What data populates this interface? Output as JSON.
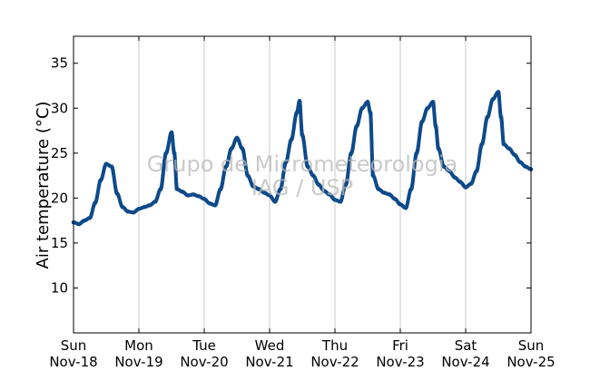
{
  "chart_data": {
    "type": "scatter",
    "title": "",
    "xlabel": "",
    "ylabel": "Air temperature (°C)",
    "ylim": [
      5,
      38
    ],
    "yticks": [
      10,
      15,
      20,
      25,
      30,
      35
    ],
    "xlim": [
      "2012-11-18",
      "2012-11-25"
    ],
    "xticks": [
      {
        "day": "Sun",
        "date": "Nov-18"
      },
      {
        "day": "Mon",
        "date": "Nov-19"
      },
      {
        "day": "Tue",
        "date": "Nov-20"
      },
      {
        "day": "Wed",
        "date": "Nov-21"
      },
      {
        "day": "Thu",
        "date": "Nov-22"
      },
      {
        "day": "Fri",
        "date": "Nov-23"
      },
      {
        "day": "Sat",
        "date": "Nov-24"
      },
      {
        "day": "Sun",
        "date": "Nov-25"
      }
    ],
    "grid": "vertical",
    "legend": "none",
    "marker_color": "#0e4a8a",
    "series": [
      {
        "values": [
          [
            "2012-11-18 00:00",
            17.3
          ],
          [
            "2012-11-18 02:00",
            17.1
          ],
          [
            "2012-11-18 04:00",
            17.5
          ],
          [
            "2012-11-18 06:00",
            17.8
          ],
          [
            "2012-11-18 08:00",
            19.5
          ],
          [
            "2012-11-18 10:00",
            22.0
          ],
          [
            "2012-11-18 12:00",
            23.8
          ],
          [
            "2012-11-18 14:00",
            23.5
          ],
          [
            "2012-11-18 16:00",
            20.5
          ],
          [
            "2012-11-18 18:00",
            19.0
          ],
          [
            "2012-11-18 20:00",
            18.5
          ],
          [
            "2012-11-18 22:00",
            18.4
          ],
          [
            "2012-11-19 00:00",
            18.8
          ],
          [
            "2012-11-19 02:00",
            19.0
          ],
          [
            "2012-11-19 04:00",
            19.2
          ],
          [
            "2012-11-19 06:00",
            19.6
          ],
          [
            "2012-11-19 08:00",
            21.0
          ],
          [
            "2012-11-19 10:00",
            25.0
          ],
          [
            "2012-11-19 12:00",
            27.3
          ],
          [
            "2012-11-19 13:00",
            25.0
          ],
          [
            "2012-11-19 14:00",
            21.0
          ],
          [
            "2012-11-19 16:00",
            20.7
          ],
          [
            "2012-11-19 18:00",
            20.3
          ],
          [
            "2012-11-19 20:00",
            20.4
          ],
          [
            "2012-11-19 22:00",
            20.2
          ],
          [
            "2012-11-20 00:00",
            19.9
          ],
          [
            "2012-11-20 02:00",
            19.4
          ],
          [
            "2012-11-20 04:00",
            19.2
          ],
          [
            "2012-11-20 06:00",
            21.0
          ],
          [
            "2012-11-20 08:00",
            23.5
          ],
          [
            "2012-11-20 10:00",
            25.5
          ],
          [
            "2012-11-20 12:00",
            26.7
          ],
          [
            "2012-11-20 14:00",
            25.5
          ],
          [
            "2012-11-20 16:00",
            22.5
          ],
          [
            "2012-11-20 18:00",
            21.3
          ],
          [
            "2012-11-20 20:00",
            21.0
          ],
          [
            "2012-11-20 22:00",
            20.6
          ],
          [
            "2012-11-21 00:00",
            20.3
          ],
          [
            "2012-11-21 02:00",
            19.6
          ],
          [
            "2012-11-21 04:00",
            21.0
          ],
          [
            "2012-11-21 06:00",
            24.0
          ],
          [
            "2012-11-21 08:00",
            26.5
          ],
          [
            "2012-11-21 10:00",
            29.5
          ],
          [
            "2012-11-21 11:00",
            30.8
          ],
          [
            "2012-11-21 12:00",
            27.0
          ],
          [
            "2012-11-21 14:00",
            23.5
          ],
          [
            "2012-11-21 16:00",
            22.5
          ],
          [
            "2012-11-21 18:00",
            21.5
          ],
          [
            "2012-11-21 20:00",
            20.8
          ],
          [
            "2012-11-21 22:00",
            20.4
          ],
          [
            "2012-11-22 00:00",
            19.8
          ],
          [
            "2012-11-22 02:00",
            19.6
          ],
          [
            "2012-11-22 04:00",
            21.5
          ],
          [
            "2012-11-22 06:00",
            25.0
          ],
          [
            "2012-11-22 08:00",
            28.0
          ],
          [
            "2012-11-22 10:00",
            30.0
          ],
          [
            "2012-11-22 12:00",
            30.7
          ],
          [
            "2012-11-22 13:00",
            29.5
          ],
          [
            "2012-11-22 14:00",
            22.5
          ],
          [
            "2012-11-22 16:00",
            21.0
          ],
          [
            "2012-11-22 18:00",
            20.6
          ],
          [
            "2012-11-22 20:00",
            20.4
          ],
          [
            "2012-11-22 22:00",
            19.9
          ],
          [
            "2012-11-23 00:00",
            19.3
          ],
          [
            "2012-11-23 02:00",
            18.9
          ],
          [
            "2012-11-23 04:00",
            21.0
          ],
          [
            "2012-11-23 06:00",
            25.0
          ],
          [
            "2012-11-23 08:00",
            28.5
          ],
          [
            "2012-11-23 10:00",
            30.0
          ],
          [
            "2012-11-23 12:00",
            30.7
          ],
          [
            "2012-11-23 13:00",
            28.0
          ],
          [
            "2012-11-23 14:00",
            25.5
          ],
          [
            "2012-11-23 16:00",
            23.5
          ],
          [
            "2012-11-23 18:00",
            23.0
          ],
          [
            "2012-11-23 20:00",
            22.3
          ],
          [
            "2012-11-23 22:00",
            21.8
          ],
          [
            "2012-11-24 00:00",
            21.2
          ],
          [
            "2012-11-24 02:00",
            21.6
          ],
          [
            "2012-11-24 04:00",
            23.0
          ],
          [
            "2012-11-24 06:00",
            26.0
          ],
          [
            "2012-11-24 08:00",
            29.0
          ],
          [
            "2012-11-24 10:00",
            31.0
          ],
          [
            "2012-11-24 12:00",
            31.8
          ],
          [
            "2012-11-24 13:00",
            29.0
          ],
          [
            "2012-11-24 14:00",
            26.0
          ],
          [
            "2012-11-24 16:00",
            25.5
          ],
          [
            "2012-11-24 18:00",
            24.8
          ],
          [
            "2012-11-24 20:00",
            24.0
          ],
          [
            "2012-11-24 22:00",
            23.5
          ],
          [
            "2012-11-25 00:00",
            23.2
          ]
        ]
      }
    ],
    "watermark": [
      "Grupo de Micrometeorologia",
      "IAG / USP"
    ]
  }
}
